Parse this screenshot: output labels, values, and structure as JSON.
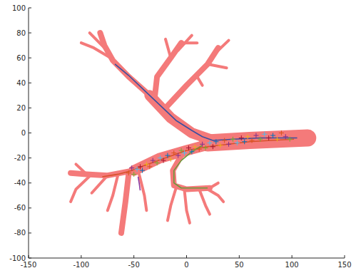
{
  "chart_data": {
    "type": "line",
    "xlim": [
      -150,
      150
    ],
    "ylim": [
      -100,
      100
    ],
    "xticks": [
      -150,
      -100,
      -50,
      0,
      50,
      100,
      150
    ],
    "yticks": [
      -100,
      -80,
      -60,
      -40,
      -20,
      0,
      20,
      40,
      60,
      80,
      100
    ],
    "grid": false,
    "series": [
      {
        "type": "line",
        "color": "#f47a7a",
        "line_style": "wide",
        "x": [
          115,
          60,
          20
        ],
        "values": [
          -4,
          -6,
          -8
        ]
      },
      {
        "type": "line",
        "color": "#f47a7a",
        "line_style": "medium",
        "x": [
          22,
          5,
          -15,
          -35
        ],
        "values": [
          -5,
          0,
          12,
          30
        ]
      },
      {
        "type": "line",
        "color": "#f47a7a",
        "line_style": "thin",
        "x": [
          -35,
          -55,
          -70,
          -78,
          -82
        ],
        "values": [
          30,
          45,
          58,
          70,
          80
        ]
      },
      {
        "type": "line",
        "color": "#f47a7a",
        "line_style": "twig",
        "x": [
          -72,
          -88,
          -100
        ],
        "values": [
          60,
          68,
          72
        ]
      },
      {
        "type": "line",
        "color": "#f47a7a",
        "line_style": "twig",
        "x": [
          -78,
          -92
        ],
        "values": [
          68,
          80
        ]
      },
      {
        "type": "line",
        "color": "#f47a7a",
        "line_style": "thin",
        "x": [
          -30,
          -28,
          -15,
          -5
        ],
        "values": [
          30,
          45,
          60,
          72
        ]
      },
      {
        "type": "line",
        "color": "#f47a7a",
        "line_style": "twig",
        "x": [
          -15,
          -20
        ],
        "values": [
          60,
          75
        ]
      },
      {
        "type": "line",
        "color": "#f47a7a",
        "line_style": "twig",
        "x": [
          -8,
          5
        ],
        "values": [
          66,
          78
        ]
      },
      {
        "type": "line",
        "color": "#f47a7a",
        "line_style": "twig",
        "x": [
          -5,
          10
        ],
        "values": [
          72,
          72
        ]
      },
      {
        "type": "line",
        "color": "#f47a7a",
        "line_style": "thin",
        "x": [
          -20,
          0,
          20,
          30
        ],
        "values": [
          20,
          38,
          55,
          68
        ]
      },
      {
        "type": "line",
        "color": "#f47a7a",
        "line_style": "twig",
        "x": [
          20,
          38
        ],
        "values": [
          55,
          52
        ]
      },
      {
        "type": "line",
        "color": "#f47a7a",
        "line_style": "twig",
        "x": [
          25,
          40
        ],
        "values": [
          62,
          74
        ]
      },
      {
        "type": "line",
        "color": "#f47a7a",
        "line_style": "twig",
        "x": [
          10,
          15
        ],
        "values": [
          45,
          38
        ]
      },
      {
        "type": "line",
        "color": "#f47a7a",
        "line_style": "medium",
        "x": [
          22,
          0,
          -25,
          -50
        ],
        "values": [
          -9,
          -14,
          -20,
          -30
        ]
      },
      {
        "type": "line",
        "color": "#f47a7a",
        "line_style": "thin",
        "x": [
          -50,
          -75,
          -95,
          -110
        ],
        "values": [
          -30,
          -34,
          -33,
          -32
        ]
      },
      {
        "type": "line",
        "color": "#f47a7a",
        "line_style": "twig",
        "x": [
          -90,
          -105,
          -110
        ],
        "values": [
          -33,
          -45,
          -55
        ]
      },
      {
        "type": "line",
        "color": "#f47a7a",
        "line_style": "twig",
        "x": [
          -75,
          -90
        ],
        "values": [
          -34,
          -48
        ]
      },
      {
        "type": "line",
        "color": "#f47a7a",
        "line_style": "twig",
        "x": [
          -95,
          -105
        ],
        "values": [
          -33,
          -25
        ]
      },
      {
        "type": "line",
        "color": "#f47a7a",
        "line_style": "twig",
        "x": [
          -65,
          -70,
          -75
        ],
        "values": [
          -33,
          -50,
          -62
        ]
      },
      {
        "type": "line",
        "color": "#f47a7a",
        "line_style": "thin",
        "x": [
          -55,
          -58,
          -62
        ],
        "values": [
          -33,
          -55,
          -80
        ]
      },
      {
        "type": "line",
        "color": "#f47a7a",
        "line_style": "twig",
        "x": [
          -45,
          -40,
          -38
        ],
        "values": [
          -33,
          -50,
          -62
        ]
      },
      {
        "type": "line",
        "color": "#f47a7a",
        "line_style": "thin",
        "x": [
          10,
          -5,
          -13,
          -12,
          0,
          22
        ],
        "values": [
          -10,
          -18,
          -30,
          -42,
          -45,
          -44
        ]
      },
      {
        "type": "line",
        "color": "#f47a7a",
        "line_style": "twig",
        "x": [
          -10,
          -15,
          -18
        ],
        "values": [
          -44,
          -58,
          -70
        ]
      },
      {
        "type": "line",
        "color": "#f47a7a",
        "line_style": "twig",
        "x": [
          -2,
          0,
          3
        ],
        "values": [
          -46,
          -62,
          -72
        ]
      },
      {
        "type": "line",
        "color": "#f47a7a",
        "line_style": "twig",
        "x": [
          12,
          18,
          22
        ],
        "values": [
          -45,
          -58,
          -65
        ]
      },
      {
        "type": "line",
        "color": "#f47a7a",
        "line_style": "twig",
        "x": [
          18,
          30,
          35
        ],
        "values": [
          -44,
          -50,
          -55
        ]
      },
      {
        "type": "line",
        "color": "#f47a7a",
        "line_style": "twig",
        "x": [
          22,
          30
        ],
        "values": [
          -44,
          -40
        ]
      },
      {
        "type": "line",
        "color": "#3a4fa0",
        "line_style": "solid",
        "x": [
          -68,
          -55,
          -40,
          -25,
          -10,
          5,
          15,
          25,
          45,
          70,
          95,
          105
        ],
        "values": [
          55,
          46,
          34,
          22,
          10,
          2,
          -3,
          -6,
          -5,
          -4,
          -4,
          -4
        ]
      },
      {
        "type": "line",
        "color": "#d8522a",
        "line_style": "solid",
        "x": [
          102,
          80,
          60,
          40,
          20,
          0,
          -20,
          -40,
          -52,
          -65,
          -80
        ],
        "values": [
          -5,
          -6,
          -7,
          -9,
          -11,
          -14,
          -20,
          -26,
          -30,
          -33,
          -35
        ]
      },
      {
        "type": "line",
        "color": "#6a9a3a",
        "line_style": "solid",
        "x": [
          15,
          5,
          -5,
          -12,
          -12,
          -5,
          10,
          20
        ],
        "values": [
          -10,
          -15,
          -22,
          -30,
          -40,
          -44,
          -44,
          -44
        ]
      },
      {
        "type": "line",
        "color": "#8a3aa0",
        "line_style": "solid",
        "x": [
          -46,
          -45,
          -44
        ],
        "values": [
          -35,
          -40,
          -46
        ]
      },
      {
        "type": "scatter",
        "marker": "plus",
        "x": [
          -55,
          -52,
          -50,
          -47,
          -44,
          -42,
          -38,
          -35,
          -32,
          -28,
          -25,
          -22,
          -18,
          -15,
          -12,
          -8,
          -5,
          -2,
          2,
          5,
          8,
          12,
          15,
          18,
          22,
          25,
          28,
          32,
          36,
          40,
          44,
          48,
          52,
          55,
          58,
          62,
          66,
          70,
          74,
          78,
          82,
          86,
          90,
          94,
          98
        ],
        "values": [
          -32,
          -28,
          -33,
          -29,
          -27,
          -30,
          -25,
          -27,
          -22,
          -24,
          -20,
          -22,
          -18,
          -21,
          -16,
          -18,
          -14,
          -16,
          -12,
          -15,
          -11,
          -13,
          -9,
          -12,
          -8,
          -11,
          -7,
          -10,
          -6,
          -9,
          -5,
          -8,
          -4,
          -7,
          -3,
          -6,
          -2,
          -5,
          -1,
          -4,
          -2,
          -5,
          0,
          -3,
          -5
        ],
        "colors": [
          "#d95319",
          "#7e2f8e",
          "#77ac30",
          "#4dbeee",
          "#a2142f",
          "#0072bd",
          "#edb120",
          "#d95319",
          "#7e2f8e",
          "#77ac30",
          "#4dbeee",
          "#a2142f",
          "#0072bd",
          "#edb120",
          "#d95319",
          "#7e2f8e",
          "#77ac30",
          "#4dbeee",
          "#a2142f",
          "#0072bd",
          "#edb120",
          "#d95319",
          "#7e2f8e",
          "#77ac30",
          "#4dbeee",
          "#a2142f",
          "#0072bd",
          "#edb120",
          "#d95319",
          "#7e2f8e",
          "#77ac30",
          "#4dbeee",
          "#a2142f",
          "#0072bd",
          "#edb120",
          "#d95319",
          "#7e2f8e",
          "#77ac30",
          "#4dbeee",
          "#a2142f",
          "#0072bd",
          "#edb120",
          "#d95319",
          "#7e2f8e",
          "#77ac30"
        ]
      }
    ]
  }
}
